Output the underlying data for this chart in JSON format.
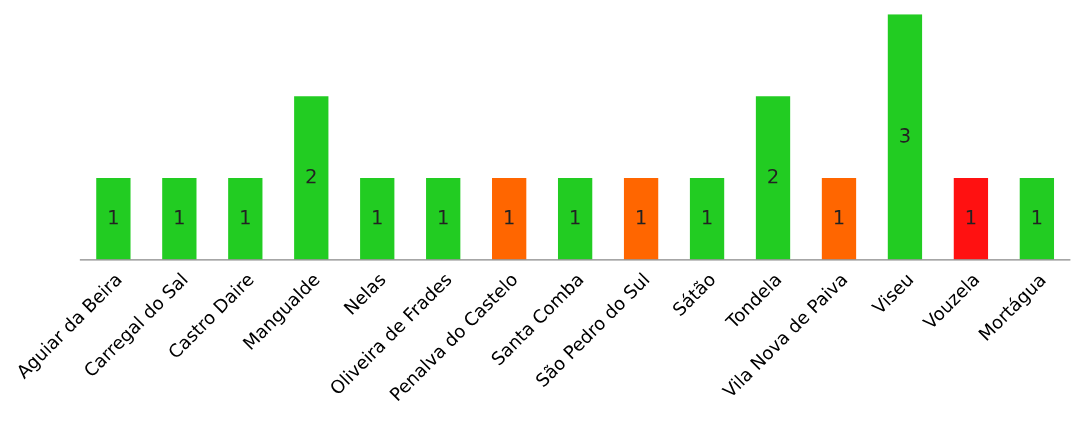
{
  "chart_data": {
    "type": "bar",
    "categories": [
      "Aguiar da Beira",
      "Carregal do Sal",
      "Castro Daire",
      "Mangualde",
      "Nelas",
      "Oliveira de Frades",
      "Penalva do Castelo",
      "Santa Comba",
      "São Pedro do Sul",
      "Sátão",
      "Tondela",
      "Vila Nova de Paiva",
      "Viseu",
      "Vouzela",
      "Mortágua"
    ],
    "values": [
      1,
      1,
      1,
      2,
      1,
      1,
      1,
      1,
      1,
      1,
      2,
      1,
      3,
      1,
      1
    ],
    "colors": [
      "#22cc22",
      "#22cc22",
      "#22cc22",
      "#22cc22",
      "#22cc22",
      "#22cc22",
      "#ff6600",
      "#22cc22",
      "#ff6600",
      "#22cc22",
      "#22cc22",
      "#ff6600",
      "#22cc22",
      "#ff1111",
      "#22cc22"
    ],
    "data_labels": true
  }
}
